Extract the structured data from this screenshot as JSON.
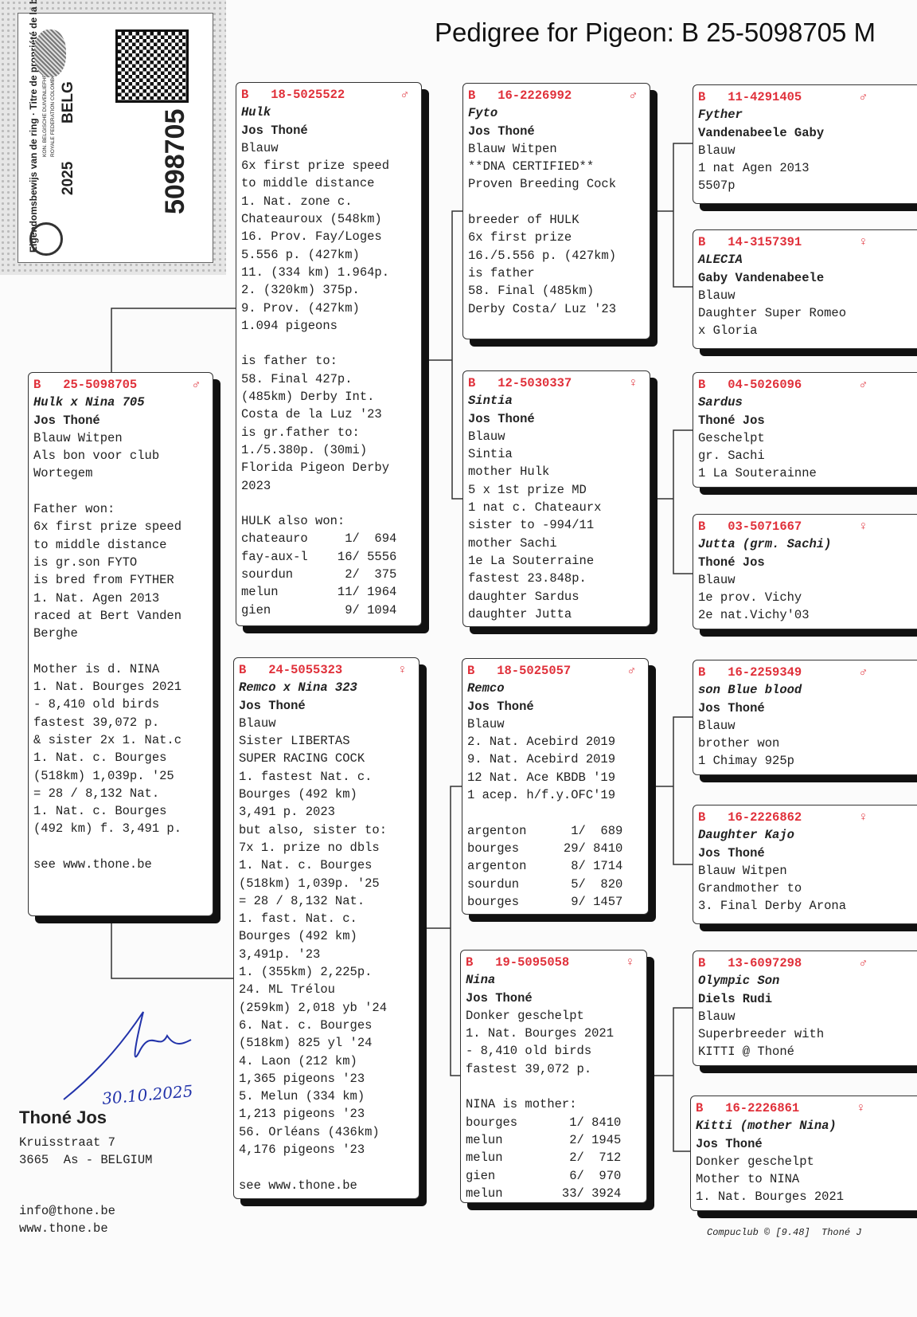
{
  "title": "Pedigree for Pigeon: B   25-5098705 M",
  "ring_card": {
    "federation_nl": "KON. BELGISCHE DUIVENLIEFHEBBERSBOND",
    "federation_fr": "ROYALE FEDERATION COLOMBOPHILE BELGE",
    "year": "2025",
    "country": "BELG",
    "ownership": "Eigendomsbewijs van de ring · Titre de propriété de la bague",
    "number": "5098705"
  },
  "colors": {
    "ring_header": "#e0303a",
    "shadow": "#111111"
  },
  "cards": [
    {
      "id": "subject",
      "ring": "B   25-5098705",
      "sex": "♂",
      "name": "Hulk x Nina 705",
      "owner": "Jos Thoné",
      "lines": [
        "Blauw Witpen",
        "Als bon voor club",
        "Wortegem",
        "",
        "Father won:",
        "6x first prize speed",
        "to middle distance",
        "is gr.son FYTO",
        "is bred from FYTHER",
        "1. Nat. Agen 2013",
        "raced at Bert Vanden",
        "Berghe",
        "",
        "Mother is d. NINA",
        "1. Nat. Bourges 2021",
        "- 8,410 old birds",
        "fastest 39,072 p.",
        "& sister 2x 1. Nat.c",
        "1. Nat. c. Bourges",
        "(518km) 1,039p. '25",
        "= 28 / 8,132 Nat.",
        "1. Nat. c. Bourges",
        "(492 km) f. 3,491 p.",
        "",
        "see www.thone.be"
      ]
    },
    {
      "id": "sire",
      "ring": "B   18-5025522",
      "sex": "♂",
      "name": "Hulk",
      "owner": "Jos Thoné",
      "lines": [
        "Blauw",
        "6x first prize speed",
        "to middle distance",
        "1. Nat. zone c.",
        "Chateauroux (548km)",
        "16. Prov. Fay/Loges",
        "5.556 p. (427km)",
        "11. (334 km) 1.964p.",
        "2. (320km) 375p.",
        "9. Prov. (427km)",
        "1.094 pigeons",
        "",
        "is father to:",
        "58. Final 427p.",
        "(485km) Derby Int.",
        "Costa de la Luz '23",
        "is gr.father to:",
        "1./5.380p. (30mi)",
        "Florida Pigeon Derby",
        "2023",
        "",
        "HULK also won:",
        "chateauro     1/  694",
        "fay-aux-l    16/ 5556",
        "sourdun       2/  375",
        "melun        11/ 1964",
        "gien          9/ 1094"
      ]
    },
    {
      "id": "dam",
      "ring": "B   24-5055323",
      "sex": "♀",
      "name": "Remco x Nina 323",
      "owner": "Jos Thoné",
      "lines": [
        "Blauw",
        "Sister LIBERTAS",
        "SUPER RACING COCK",
        "1. fastest Nat. c.",
        "Bourges (492 km)",
        "3,491 p. 2023",
        "but also, sister to:",
        "7x 1. prize no dbls",
        "1. Nat. c. Bourges",
        "(518km) 1,039p. '25",
        "= 28 / 8,132 Nat.",
        "1. fast. Nat. c.",
        "Bourges (492 km)",
        "3,491p. '23",
        "1. (355km) 2,225p.",
        "24. ML Trélou",
        "(259km) 2,018 yb '24",
        "6. Nat. c. Bourges",
        "(518km) 825 yl '24",
        "4. Laon (212 km)",
        "1,365 pigeons '23",
        "5. Melun (334 km)",
        "1,213 pigeons '23",
        "56. Orléans (436km)",
        "4,176 pigeons '23",
        "",
        "see www.thone.be"
      ]
    },
    {
      "id": "ss",
      "ring": "B   16-2226992",
      "sex": "♂",
      "name": "Fyto",
      "owner": "Jos Thoné",
      "lines": [
        "Blauw Witpen",
        "**DNA CERTIFIED**",
        "Proven Breeding Cock",
        "",
        "breeder of HULK",
        "6x first prize",
        "16./5.556 p. (427km)",
        "is father",
        "58. Final (485km)",
        "Derby Costa/ Luz '23"
      ]
    },
    {
      "id": "sd",
      "ring": "B   12-5030337",
      "sex": "♀",
      "name": "Sintia",
      "owner": "Jos Thoné",
      "lines": [
        "Blauw",
        "Sintia",
        "mother Hulk",
        "5 x 1st prize MD",
        "1 nat c. Chateaurx",
        "sister to -994/11",
        "mother Sachi",
        "1e La Souterraine",
        "fastest 23.848p.",
        "daughter Sardus",
        "daughter Jutta"
      ]
    },
    {
      "id": "ds",
      "ring": "B   18-5025057",
      "sex": "♂",
      "name": "Remco",
      "owner": "Jos Thoné",
      "lines": [
        "Blauw",
        "2. Nat. Acebird 2019",
        "9. Nat. Acebird 2019",
        "12 Nat. Ace KBDB '19",
        "1 acep. h/f.y.OFC'19",
        "",
        "argenton      1/  689",
        "bourges      29/ 8410",
        "argenton      8/ 1714",
        "sourdun       5/  820",
        "bourges       9/ 1457"
      ]
    },
    {
      "id": "dd",
      "ring": "B   19-5095058",
      "sex": "♀",
      "name": "Nina",
      "owner": "Jos Thoné",
      "lines": [
        "Donker geschelpt",
        "1. Nat. Bourges 2021",
        "- 8,410 old birds",
        "fastest 39,072 p.",
        "",
        "NINA is mother:",
        "bourges       1/ 8410",
        "melun         2/ 1945",
        "melun         2/  712",
        "gien          6/  970",
        "melun        33/ 3924"
      ]
    },
    {
      "id": "sss",
      "ring": "B   11-4291405",
      "sex": "♂",
      "name": "Fyther",
      "owner": "Vandenabeele Gaby",
      "lines": [
        "Blauw",
        "1 nat Agen 2013",
        "5507p"
      ]
    },
    {
      "id": "ssd",
      "ring": "B   14-3157391",
      "sex": "♀",
      "name": "ALECIA",
      "owner": "Gaby Vandenabeele",
      "lines": [
        "Blauw",
        "Daughter Super Romeo",
        "x Gloria"
      ]
    },
    {
      "id": "sds",
      "ring": "B   04-5026096",
      "sex": "♂",
      "name": "Sardus",
      "owner": "Thoné Jos",
      "lines": [
        "Geschelpt",
        "gr. Sachi",
        "1 La Souterainne"
      ]
    },
    {
      "id": "sdd",
      "ring": "B   03-5071667",
      "sex": "♀",
      "name": "Jutta (grm. Sachi)",
      "owner": "Thoné Jos",
      "lines": [
        "Blauw",
        "1e prov. Vichy",
        "2e nat.Vichy'03"
      ]
    },
    {
      "id": "dss",
      "ring": "B   16-2259349",
      "sex": "♂",
      "name": "son Blue blood",
      "owner": "Jos Thoné",
      "lines": [
        "Blauw",
        "brother won",
        "1 Chimay 925p"
      ]
    },
    {
      "id": "dsd",
      "ring": "B   16-2226862",
      "sex": "♀",
      "name": "Daughter Kajo",
      "owner": "Jos Thoné",
      "lines": [
        "Blauw Witpen",
        "Grandmother to",
        "3. Final Derby Arona"
      ]
    },
    {
      "id": "dds",
      "ring": "B   13-6097298",
      "sex": "♂",
      "name": "Olympic Son",
      "owner": "Diels Rudi",
      "lines": [
        "Blauw",
        "Superbreeder with",
        "KITTI @ Thoné"
      ]
    },
    {
      "id": "ddd",
      "ring": "B   16-2226861",
      "sex": "♀",
      "name": "Kitti (mother Nina)",
      "owner": "Jos Thoné",
      "lines": [
        "Donker geschelpt",
        "Mother to NINA",
        "1. Nat. Bourges 2021"
      ]
    }
  ],
  "signature": {
    "date": "30.10.2025"
  },
  "breeder": {
    "name": "Thoné Jos",
    "street": "Kruisstraat 7",
    "city": "3665  As - BELGIUM",
    "email": "info@thone.be",
    "web": "www.thone.be"
  },
  "footer": "Compuclub © [9.48]  Thoné J"
}
